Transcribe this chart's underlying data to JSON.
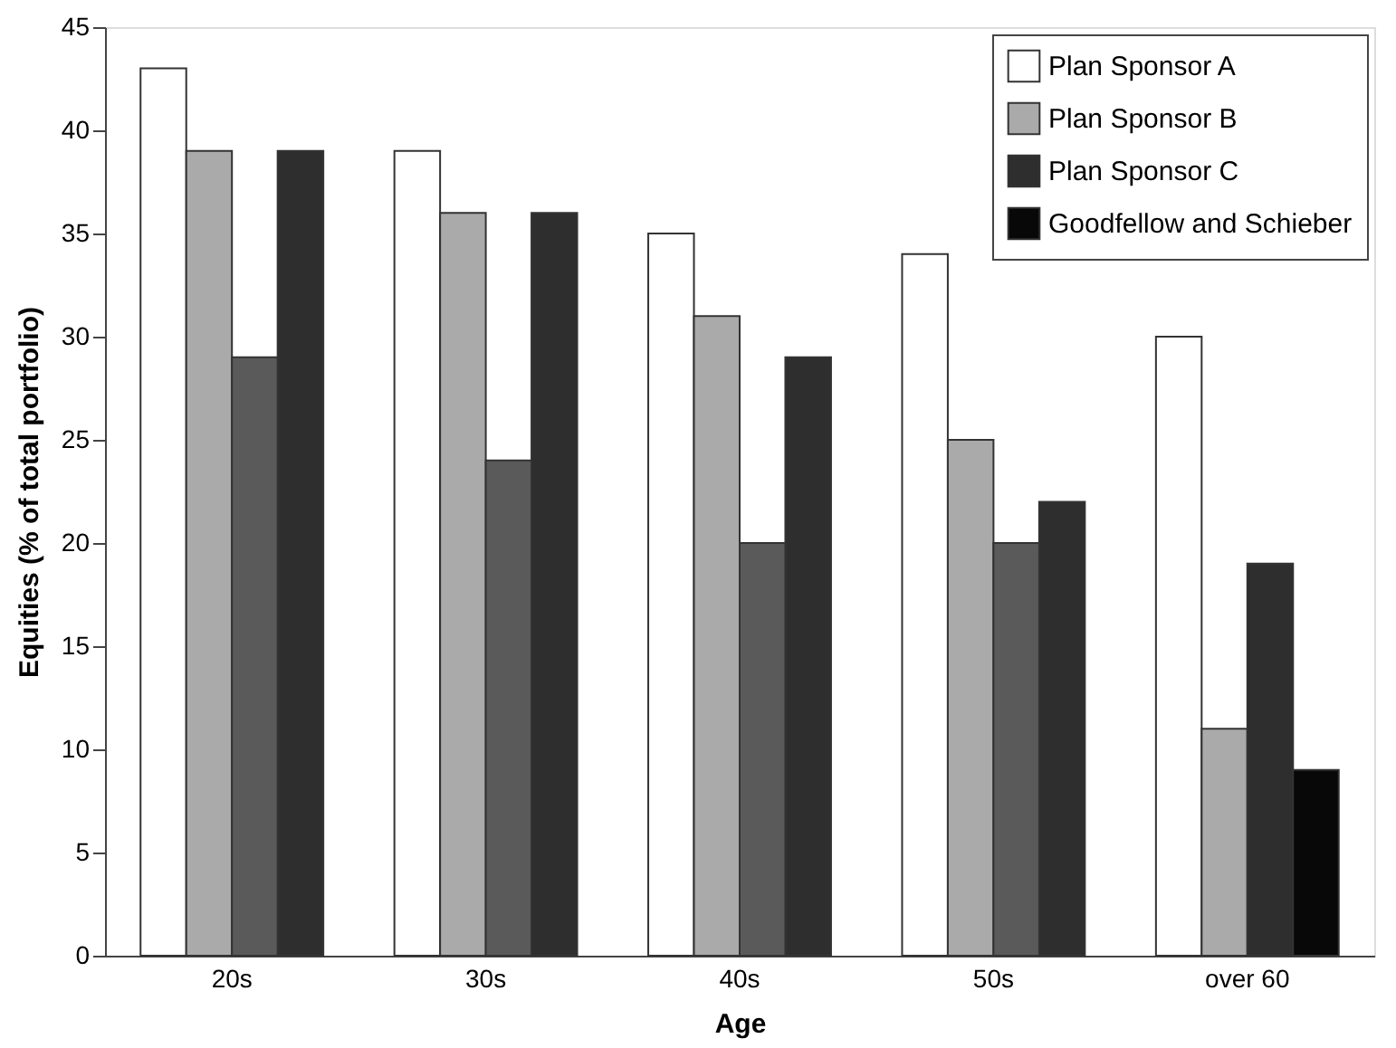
{
  "chart_data": {
    "type": "bar",
    "xlabel": "Age",
    "ylabel": "Equities (% of total portfolio)",
    "categories": [
      "20s",
      "30s",
      "40s",
      "50s",
      "over 60"
    ],
    "series": [
      {
        "name": "Plan Sponsor A",
        "color": "#ffffff",
        "values": [
          43,
          39,
          35,
          34,
          30
        ]
      },
      {
        "name": "Plan Sponsor B",
        "color": "#aaaaaa",
        "values": [
          39,
          36,
          31,
          25,
          11
        ]
      },
      {
        "color": "#5a5a5a",
        "values": [
          29,
          24,
          20,
          20,
          null
        ]
      },
      {
        "name": "Plan Sponsor C",
        "color": "#2e2e2e",
        "values": [
          39,
          36,
          29,
          22,
          19
        ]
      },
      {
        "name": "Goodfellow and Schieber",
        "color": "#080808",
        "values": [
          null,
          null,
          null,
          null,
          9
        ]
      }
    ],
    "ylim": [
      0,
      45
    ],
    "yticks": [
      0,
      5,
      10,
      15,
      20,
      25,
      30,
      35,
      40,
      45
    ],
    "grid": false,
    "legend": "top right"
  }
}
